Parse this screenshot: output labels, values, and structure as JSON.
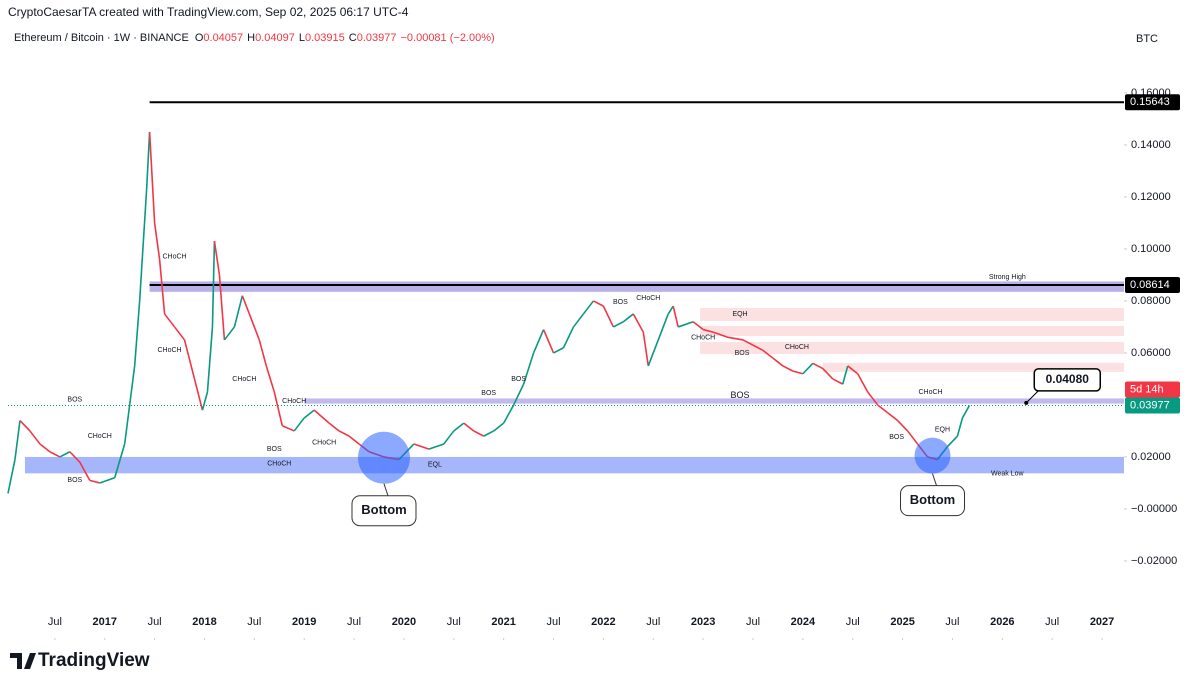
{
  "chart_data": {
    "type": "line",
    "attribution": "CryptoCaesarTA created with TradingView.com, Sep 02, 2025 06:17 UTC-4",
    "title": "Ethereum / Bitcoin · 1W · BINANCE",
    "ohlc": [
      {
        "label": "O",
        "value": 0.04057
      },
      {
        "label": "H",
        "value": 0.04097
      },
      {
        "label": "L",
        "value": 0.03915
      },
      {
        "label": "C",
        "value": 0.03977
      }
    ],
    "change": "−0.00081 (−2.00%)",
    "currency": "BTC",
    "brand": "TradingView",
    "up_color": "#089981",
    "down_color": "#f23645",
    "grid": false,
    "xlim": [
      2016.03,
      2027.22
    ],
    "ylim": [
      -0.0504,
      0.1842
    ],
    "xticks": [
      {
        "value": 2016.5,
        "label": "Jul"
      },
      2017,
      {
        "value": 2017.5,
        "label": "Jul"
      },
      2018,
      {
        "value": 2018.5,
        "label": "Jul"
      },
      2019,
      {
        "value": 2019.5,
        "label": "Jul"
      },
      2020,
      {
        "value": 2020.5,
        "label": "Jul"
      },
      2021,
      {
        "value": 2021.5,
        "label": "Jul"
      },
      2022,
      {
        "value": 2022.5,
        "label": "Jul"
      },
      2023,
      {
        "value": 2023.5,
        "label": "Jul"
      },
      2024,
      {
        "value": 2024.5,
        "label": "Jul"
      },
      2025,
      {
        "value": 2025.5,
        "label": "Jul"
      },
      2026,
      {
        "value": 2026.5,
        "label": "Jul"
      },
      2027
    ],
    "yticks": [
      {
        "value": 0.16,
        "label": "0.16000"
      },
      {
        "value": 0.14,
        "label": "0.14000"
      },
      {
        "value": 0.12,
        "label": "0.12000"
      },
      {
        "value": 0.1,
        "label": "0.10000"
      },
      {
        "value": 0.08,
        "label": "0.08000"
      },
      {
        "value": 0.06,
        "label": "0.06000"
      },
      {
        "value": 0.02,
        "label": "0.02000"
      },
      {
        "value": 0,
        "label": "−0.00000"
      },
      {
        "value": -0.02,
        "label": "−0.02000"
      }
    ],
    "x": [
      2016.03,
      2016.1,
      2016.15,
      2016.25,
      2016.35,
      2016.45,
      2016.55,
      2016.65,
      2016.75,
      2016.85,
      2016.95,
      2017.1,
      2017.2,
      2017.25,
      2017.3,
      2017.35,
      2017.42,
      2017.45,
      2017.5,
      2017.55,
      2017.6,
      2017.7,
      2017.8,
      2017.9,
      2017.98,
      2018.03,
      2018.08,
      2018.1,
      2018.15,
      2018.2,
      2018.3,
      2018.38,
      2018.45,
      2018.55,
      2018.62,
      2018.7,
      2018.78,
      2018.9,
      2019.0,
      2019.1,
      2019.25,
      2019.35,
      2019.45,
      2019.55,
      2019.65,
      2019.8,
      2019.95,
      2020.1,
      2020.25,
      2020.4,
      2020.5,
      2020.6,
      2020.7,
      2020.8,
      2020.9,
      2021.0,
      2021.1,
      2021.2,
      2021.3,
      2021.4,
      2021.5,
      2021.6,
      2021.7,
      2021.8,
      2021.9,
      2022.0,
      2022.1,
      2022.2,
      2022.3,
      2022.4,
      2022.45,
      2022.55,
      2022.65,
      2022.7,
      2022.75,
      2022.9,
      2023.0,
      2023.1,
      2023.25,
      2023.4,
      2023.5,
      2023.6,
      2023.7,
      2023.8,
      2023.9,
      2024.0,
      2024.1,
      2024.2,
      2024.3,
      2024.4,
      2024.45,
      2024.55,
      2024.65,
      2024.75,
      2024.85,
      2024.95,
      2025.05,
      2025.15,
      2025.25,
      2025.35,
      2025.45,
      2025.55,
      2025.6,
      2025.67
    ],
    "series": [
      {
        "name": "ETH/BTC",
        "values": [
          0.006,
          0.019,
          0.034,
          0.03,
          0.025,
          0.022,
          0.02,
          0.022,
          0.018,
          0.011,
          0.01,
          0.012,
          0.025,
          0.04,
          0.055,
          0.08,
          0.123,
          0.145,
          0.11,
          0.096,
          0.075,
          0.07,
          0.065,
          0.05,
          0.038,
          0.045,
          0.07,
          0.103,
          0.09,
          0.065,
          0.07,
          0.082,
          0.075,
          0.065,
          0.055,
          0.045,
          0.032,
          0.03,
          0.035,
          0.038,
          0.033,
          0.03,
          0.028,
          0.025,
          0.022,
          0.02,
          0.019,
          0.025,
          0.023,
          0.025,
          0.03,
          0.033,
          0.03,
          0.028,
          0.03,
          0.033,
          0.04,
          0.048,
          0.06,
          0.069,
          0.06,
          0.062,
          0.07,
          0.075,
          0.08,
          0.078,
          0.07,
          0.072,
          0.075,
          0.068,
          0.055,
          0.065,
          0.075,
          0.078,
          0.07,
          0.072,
          0.069,
          0.068,
          0.066,
          0.065,
          0.063,
          0.061,
          0.058,
          0.055,
          0.053,
          0.052,
          0.056,
          0.054,
          0.05,
          0.048,
          0.055,
          0.052,
          0.045,
          0.04,
          0.037,
          0.034,
          0.03,
          0.025,
          0.02,
          0.019,
          0.024,
          0.028,
          0.035,
          0.03977
        ]
      }
    ],
    "levels": [
      {
        "value": 0.15643,
        "start": 2017.45
      },
      {
        "value": 0.08614,
        "start": 2017.45
      }
    ],
    "zones": [
      {
        "ylim": [
          0.0835,
          0.0875
        ],
        "start": 2017.45,
        "color": "#7e6fd6"
      },
      {
        "ylim": [
          0.0405,
          0.0425
        ],
        "start": 2019.0,
        "color": "#8f7fe0"
      },
      {
        "ylim": [
          0.0137,
          0.02
        ],
        "start": 2016.2,
        "color": "#5b7cf5"
      },
      {
        "ylim": [
          0.0723,
          0.0773
        ],
        "start": 2022.97,
        "color": "#f8c9c9"
      },
      {
        "ylim": [
          0.0665,
          0.0704
        ],
        "start": 2022.97,
        "color": "#f8c9c9"
      },
      {
        "ylim": [
          0.0596,
          0.0642
        ],
        "start": 2022.97,
        "color": "#f8c9c9"
      },
      {
        "ylim": [
          0.0527,
          0.0562
        ],
        "start": 2024.2,
        "color": "#f8c9c9"
      }
    ],
    "bottoms": [
      {
        "x": 2019.8,
        "y": 0.0197,
        "label": "Bottom"
      },
      {
        "x": 2025.3,
        "y": 0.0205,
        "label": "Bottom"
      }
    ],
    "annotations": [
      {
        "text": "BOS",
        "x": 2016.7,
        "y": 0.042,
        "color": "#089981"
      },
      {
        "text": "CHoCH",
        "x": 2016.95,
        "y": 0.028,
        "color": "#089981"
      },
      {
        "text": "BOS",
        "x": 2016.7,
        "y": 0.011,
        "color": "#f23645"
      },
      {
        "text": "CHoCH",
        "x": 2017.7,
        "y": 0.097,
        "color": "#089981"
      },
      {
        "text": "CHoCH",
        "x": 2017.65,
        "y": 0.061,
        "color": "#f23645"
      },
      {
        "text": "CHoCH",
        "x": 2018.4,
        "y": 0.05,
        "color": "#f23645"
      },
      {
        "text": "BOS",
        "x": 2018.7,
        "y": 0.023,
        "color": "#f23645"
      },
      {
        "text": "CHoCH",
        "x": 2018.75,
        "y": 0.0175,
        "color": "#5b6bd6"
      },
      {
        "text": "CHoCH",
        "x": 2018.9,
        "y": 0.0415,
        "color": "#089981"
      },
      {
        "text": "CHoCH",
        "x": 2019.2,
        "y": 0.0255,
        "color": "#f23645"
      },
      {
        "text": "EQL",
        "x": 2020.31,
        "y": 0.017,
        "color": "#089981"
      },
      {
        "text": "BOS",
        "x": 2020.85,
        "y": 0.0445,
        "color": "#089981"
      },
      {
        "text": "BOS",
        "x": 2021.15,
        "y": 0.05,
        "color": "#089981"
      },
      {
        "text": "BOS",
        "x": 2022.17,
        "y": 0.0796,
        "color": "#5b6bd6"
      },
      {
        "text": "CHoCH",
        "x": 2022.45,
        "y": 0.081,
        "color": "#089981"
      },
      {
        "text": "EQH",
        "x": 2023.37,
        "y": 0.075,
        "color": "#f23645"
      },
      {
        "text": "CHoCH",
        "x": 2023.0,
        "y": 0.0658,
        "color": "#f23645"
      },
      {
        "text": "BOS",
        "x": 2023.39,
        "y": 0.06,
        "color": "#f23645"
      },
      {
        "text": "CHoCH",
        "x": 2023.94,
        "y": 0.0623,
        "color": "#089981"
      },
      {
        "text": "BOS",
        "x": 2023.37,
        "y": 0.0435,
        "color": "#9c27b0"
      },
      {
        "text": "CHoCH",
        "x": 2025.28,
        "y": 0.045,
        "color": "#089981"
      },
      {
        "text": "EQH",
        "x": 2025.4,
        "y": 0.0304,
        "color": "#f23645"
      },
      {
        "text": "BOS",
        "x": 2024.94,
        "y": 0.0277,
        "color": "#f23645"
      },
      {
        "text": "Strong High",
        "x": 2026.05,
        "y": 0.0892,
        "color": "#f23645"
      },
      {
        "text": "Weak Low",
        "x": 2026.05,
        "y": 0.0135,
        "color": "#2962ff"
      }
    ],
    "callout": {
      "x": 2026.24,
      "value": 0.0408,
      "label": "0.04080"
    },
    "price_labels": [
      {
        "value": 0.15643,
        "color": "#000000"
      },
      {
        "value": 0.08614,
        "color": "#000000"
      },
      {
        "value": 0.03977,
        "color": "#089981"
      }
    ],
    "countdown": "5d 14h"
  }
}
